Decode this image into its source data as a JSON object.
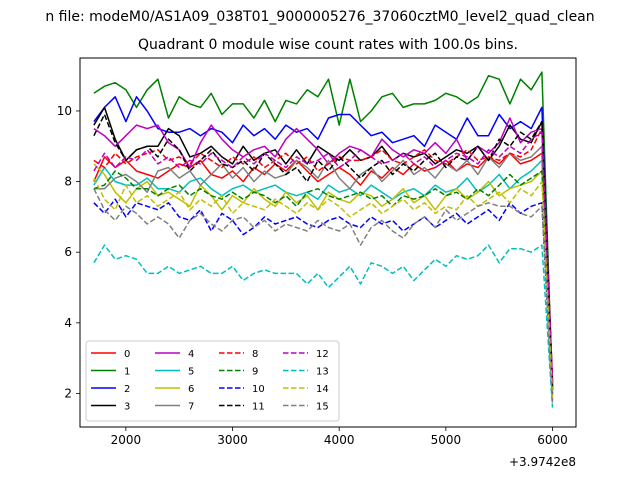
{
  "chart_data": {
    "type": "line",
    "suptitle": "n file: modeM0/AS1A09_038T01_9000005276_37060cztM0_level2_quad_clean",
    "title": "Quadrant 0 module wise count rates with 100.0s bins.",
    "xlabel": "",
    "ylabel": "",
    "x_offset_label": "+3.9742e8",
    "xlim": [
      1570,
      6220
    ],
    "ylim": [
      1.05,
      11.5
    ],
    "xticks": [
      2000,
      3000,
      4000,
      5000,
      6000
    ],
    "yticks": [
      2,
      4,
      6,
      8,
      10
    ],
    "grid": false,
    "legend_placement": "lower-left",
    "x": [
      1700,
      1800,
      1900,
      2000,
      2100,
      2200,
      2300,
      2400,
      2500,
      2600,
      2700,
      2800,
      2900,
      3000,
      3100,
      3200,
      3300,
      3400,
      3500,
      3600,
      3700,
      3800,
      3900,
      4000,
      4100,
      4200,
      4300,
      4400,
      4500,
      4600,
      4700,
      4800,
      4900,
      5000,
      5100,
      5200,
      5300,
      5400,
      5500,
      5600,
      5700,
      5800,
      5900,
      6000
    ],
    "series": [
      {
        "name": "0",
        "color": "#ff0000",
        "dash": "solid",
        "values": [
          8.0,
          8.7,
          8.4,
          8.6,
          8.3,
          8.2,
          8.1,
          8.3,
          8.5,
          8.4,
          8.6,
          8.2,
          8.1,
          8.3,
          8.0,
          8.4,
          8.2,
          8.5,
          8.3,
          8.6,
          8.3,
          8.0,
          8.2,
          8.4,
          8.2,
          7.9,
          8.3,
          8.1,
          8.4,
          8.2,
          8.5,
          8.3,
          8.4,
          8.6,
          8.3,
          8.5,
          8.4,
          8.7,
          8.5,
          8.8,
          8.5,
          8.6,
          8.8,
          2.1
        ]
      },
      {
        "name": "1",
        "color": "#008000",
        "dash": "solid",
        "values": [
          10.5,
          10.7,
          10.8,
          10.6,
          10.1,
          10.6,
          10.9,
          9.8,
          10.4,
          10.2,
          10.1,
          10.5,
          9.9,
          10.2,
          10.2,
          9.8,
          10.3,
          9.7,
          10.3,
          10.2,
          10.6,
          10.4,
          10.9,
          9.6,
          10.9,
          9.7,
          10.0,
          10.4,
          10.5,
          10.1,
          10.2,
          10.2,
          10.3,
          10.5,
          10.4,
          10.2,
          10.4,
          11.0,
          10.9,
          10.2,
          10.9,
          10.6,
          11.1,
          2.0
        ]
      },
      {
        "name": "2",
        "color": "#0000ff",
        "dash": "solid",
        "values": [
          9.7,
          10.1,
          10.4,
          9.7,
          10.4,
          10.0,
          9.5,
          9.4,
          9.4,
          9.5,
          9.3,
          9.5,
          9.4,
          9.1,
          9.6,
          9.3,
          9.5,
          9.2,
          9.6,
          9.4,
          9.5,
          9.2,
          9.8,
          9.9,
          9.9,
          9.6,
          9.3,
          9.4,
          9.1,
          9.2,
          9.3,
          9.0,
          9.6,
          9.4,
          9.2,
          9.8,
          9.3,
          9.3,
          9.9,
          9.5,
          9.7,
          9.5,
          10.1,
          2.1
        ]
      },
      {
        "name": "3",
        "color": "#000000",
        "dash": "solid",
        "values": [
          9.6,
          10.1,
          9.2,
          8.6,
          8.9,
          9.0,
          9.0,
          9.5,
          9.3,
          8.7,
          8.8,
          9.0,
          8.7,
          8.5,
          9.0,
          8.6,
          8.8,
          8.9,
          8.5,
          8.9,
          8.5,
          9.0,
          8.8,
          8.6,
          8.9,
          8.6,
          8.7,
          9.0,
          8.6,
          8.8,
          8.7,
          8.8,
          8.5,
          8.7,
          8.9,
          8.8,
          9.0,
          8.6,
          9.0,
          9.6,
          9.2,
          9.1,
          9.7,
          2.3
        ]
      },
      {
        "name": "4",
        "color": "#bf00bf",
        "dash": "solid",
        "values": [
          9.5,
          9.3,
          9.0,
          9.3,
          9.6,
          9.5,
          9.6,
          9.1,
          8.9,
          8.4,
          9.1,
          9.6,
          9.2,
          8.9,
          8.7,
          8.9,
          9.0,
          8.7,
          9.2,
          9.5,
          9.2,
          8.9,
          8.5,
          8.8,
          9.0,
          8.9,
          8.7,
          9.2,
          8.9,
          8.7,
          8.9,
          8.8,
          9.1,
          8.8,
          9.2,
          8.6,
          9.0,
          8.8,
          9.1,
          9.8,
          9.1,
          9.4,
          9.5,
          2.2
        ]
      },
      {
        "name": "5",
        "color": "#00bfbf",
        "dash": "solid",
        "values": [
          7.9,
          8.4,
          8.0,
          7.9,
          7.9,
          8.1,
          7.8,
          7.8,
          7.7,
          8.0,
          8.1,
          7.8,
          7.6,
          7.8,
          7.9,
          7.7,
          7.8,
          7.9,
          7.7,
          7.6,
          7.7,
          7.5,
          7.9,
          7.7,
          7.8,
          7.6,
          7.9,
          7.7,
          7.5,
          7.7,
          7.8,
          7.6,
          7.9,
          7.7,
          7.8,
          8.1,
          7.7,
          7.9,
          8.2,
          7.8,
          8.1,
          8.3,
          8.6,
          1.9
        ]
      },
      {
        "name": "6",
        "color": "#bfbf00",
        "dash": "solid",
        "values": [
          8.5,
          8.2,
          7.7,
          7.4,
          7.8,
          8.0,
          7.6,
          7.7,
          7.5,
          7.3,
          7.9,
          7.6,
          7.2,
          7.6,
          7.4,
          7.8,
          7.5,
          7.3,
          7.7,
          7.4,
          7.6,
          7.2,
          7.7,
          7.5,
          7.4,
          7.7,
          7.6,
          7.3,
          7.5,
          7.8,
          7.4,
          7.6,
          7.2,
          7.6,
          7.8,
          7.5,
          7.7,
          8.0,
          7.6,
          7.8,
          7.9,
          8.0,
          8.3,
          2.2
        ]
      },
      {
        "name": "7",
        "color": "#808080",
        "dash": "solid",
        "values": [
          7.8,
          7.8,
          8.1,
          8.2,
          8.0,
          7.7,
          8.3,
          8.4,
          8.1,
          8.3,
          7.9,
          8.2,
          8.5,
          8.1,
          8.4,
          8.0,
          8.3,
          8.1,
          8.2,
          8.6,
          8.4,
          8.1,
          8.6,
          8.1,
          7.8,
          8.2,
          8.4,
          8.0,
          8.3,
          8.6,
          8.2,
          8.4,
          8.1,
          8.5,
          8.3,
          8.6,
          8.2,
          8.7,
          8.4,
          8.8,
          8.6,
          8.7,
          9.0,
          2.1
        ]
      },
      {
        "name": "8",
        "color": "#ff0000",
        "dash": "dashed",
        "values": [
          8.6,
          8.4,
          8.8,
          8.5,
          8.7,
          8.8,
          8.9,
          8.6,
          8.7,
          8.5,
          8.8,
          8.6,
          8.4,
          8.7,
          8.5,
          8.7,
          8.4,
          8.6,
          8.8,
          8.5,
          8.7,
          8.3,
          8.5,
          8.7,
          8.6,
          8.6,
          8.7,
          8.9,
          8.6,
          8.5,
          8.7,
          8.9,
          8.6,
          8.5,
          8.7,
          8.9,
          8.6,
          8.7,
          8.6,
          8.8,
          8.7,
          8.9,
          9.5,
          2.4
        ]
      },
      {
        "name": "9",
        "color": "#008000",
        "dash": "dashed",
        "values": [
          7.8,
          7.9,
          8.3,
          8.1,
          7.8,
          7.8,
          7.6,
          7.8,
          7.9,
          7.6,
          7.8,
          7.6,
          7.5,
          7.7,
          7.5,
          7.7,
          7.6,
          7.4,
          7.6,
          7.3,
          7.7,
          7.8,
          7.6,
          7.5,
          7.6,
          7.7,
          7.5,
          7.6,
          7.3,
          7.6,
          7.5,
          7.6,
          7.8,
          7.6,
          7.7,
          7.5,
          7.8,
          7.6,
          7.9,
          8.2,
          7.9,
          8.1,
          8.3,
          2.0
        ]
      },
      {
        "name": "10",
        "color": "#0000ff",
        "dash": "dashed",
        "values": [
          7.4,
          7.1,
          7.5,
          7.0,
          7.4,
          7.3,
          7.2,
          7.4,
          7.0,
          6.9,
          7.2,
          6.6,
          7.1,
          6.9,
          6.5,
          6.7,
          7.0,
          6.8,
          6.9,
          7.0,
          6.8,
          6.7,
          6.9,
          7.0,
          6.8,
          6.7,
          7.0,
          6.8,
          6.9,
          6.6,
          6.8,
          7.0,
          6.7,
          6.9,
          7.1,
          6.8,
          7.0,
          7.2,
          6.9,
          7.4,
          7.1,
          7.3,
          7.4,
          1.8
        ]
      },
      {
        "name": "11",
        "color": "#000000",
        "dash": "dashed",
        "values": [
          9.3,
          9.9,
          9.1,
          8.6,
          8.9,
          9.0,
          8.7,
          9.2,
          8.9,
          8.3,
          8.6,
          8.9,
          8.5,
          8.4,
          8.6,
          8.3,
          8.8,
          8.5,
          8.2,
          8.4,
          8.0,
          8.6,
          8.3,
          8.7,
          8.4,
          8.1,
          8.4,
          8.6,
          8.2,
          8.5,
          8.3,
          8.6,
          8.8,
          8.4,
          8.7,
          8.6,
          9.0,
          8.6,
          9.2,
          9.0,
          9.4,
          9.2,
          9.7,
          2.2
        ]
      },
      {
        "name": "12",
        "color": "#bf00bf",
        "dash": "dashed",
        "values": [
          8.3,
          8.8,
          8.4,
          8.7,
          8.6,
          8.9,
          8.5,
          8.7,
          8.4,
          8.6,
          8.5,
          8.8,
          8.6,
          8.4,
          8.7,
          8.5,
          8.8,
          8.6,
          8.4,
          8.7,
          8.5,
          8.6,
          8.8,
          8.4,
          8.6,
          8.9,
          8.7,
          8.5,
          8.6,
          8.8,
          8.5,
          8.7,
          8.4,
          8.6,
          8.8,
          8.7,
          8.5,
          8.9,
          8.7,
          9.0,
          8.8,
          9.2,
          9.4,
          2.3
        ]
      },
      {
        "name": "13",
        "color": "#00bfbf",
        "dash": "dashed",
        "values": [
          5.7,
          6.2,
          5.8,
          5.9,
          5.8,
          5.4,
          5.4,
          5.6,
          5.4,
          5.5,
          5.6,
          5.4,
          5.4,
          5.6,
          5.2,
          5.4,
          5.5,
          5.4,
          5.4,
          5.4,
          5.1,
          5.4,
          5.0,
          5.3,
          5.6,
          5.1,
          5.7,
          5.6,
          5.4,
          5.6,
          5.2,
          5.5,
          5.8,
          5.6,
          5.9,
          5.8,
          5.9,
          6.2,
          5.7,
          6.1,
          6.1,
          6.0,
          6.2,
          1.6
        ]
      },
      {
        "name": "14",
        "color": "#bfbf00",
        "dash": "dashed",
        "values": [
          8.1,
          7.5,
          7.2,
          7.9,
          7.4,
          7.6,
          7.3,
          7.5,
          7.7,
          7.2,
          7.5,
          7.3,
          7.6,
          7.1,
          7.4,
          7.3,
          7.2,
          7.5,
          7.3,
          7.1,
          7.4,
          7.2,
          7.5,
          7.3,
          7.0,
          7.2,
          7.4,
          7.1,
          7.3,
          7.5,
          7.2,
          7.4,
          7.1,
          7.3,
          7.2,
          7.6,
          7.3,
          7.5,
          7.7,
          7.4,
          7.8,
          7.6,
          8.0,
          1.9
        ]
      },
      {
        "name": "15",
        "color": "#808080",
        "dash": "dashed",
        "values": [
          7.8,
          7.2,
          6.9,
          7.3,
          7.1,
          6.8,
          7.0,
          6.8,
          6.4,
          6.9,
          7.1,
          6.8,
          6.6,
          6.9,
          7.0,
          6.7,
          6.9,
          6.6,
          6.8,
          6.7,
          6.6,
          6.9,
          6.7,
          6.6,
          6.8,
          6.2,
          6.7,
          6.9,
          6.6,
          6.4,
          6.8,
          7.0,
          6.7,
          7.2,
          6.9,
          7.1,
          7.3,
          7.4,
          7.3,
          7.3,
          7.1,
          7.0,
          7.3,
          1.7
        ]
      }
    ]
  }
}
